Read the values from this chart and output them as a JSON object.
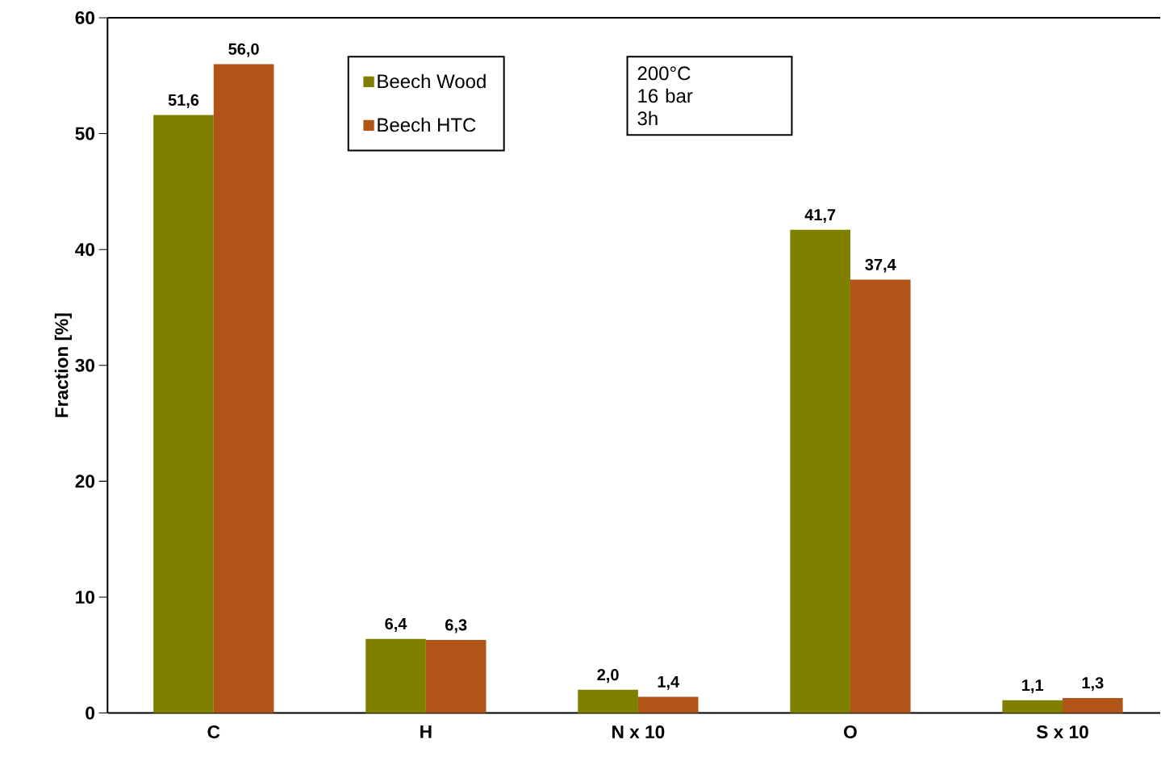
{
  "chart_data": {
    "type": "bar",
    "ylabel": "Fraction  [%]",
    "categories": [
      "C",
      "H",
      "N x 10",
      "O",
      "S x 10"
    ],
    "series": [
      {
        "name": "Beech Wood",
        "color": "#7f8000",
        "values": [
          51.6,
          6.4,
          2.0,
          41.7,
          1.1
        ],
        "value_labels": [
          "51,6",
          "6,4",
          "2,0",
          "41,7",
          "1,1"
        ]
      },
      {
        "name": "Beech HTC",
        "color": "#b05418",
        "values": [
          56.0,
          6.3,
          1.4,
          37.4,
          1.3
        ],
        "value_labels": [
          "56,0",
          "6,3",
          "1,4",
          "37,4",
          "1,3"
        ]
      }
    ],
    "ylim": [
      0,
      60
    ],
    "yticks": [
      0,
      10,
      20,
      30,
      40,
      50,
      60
    ],
    "legend": "top left",
    "annotations": [
      "200°C",
      "16 bar",
      "3h"
    ]
  }
}
